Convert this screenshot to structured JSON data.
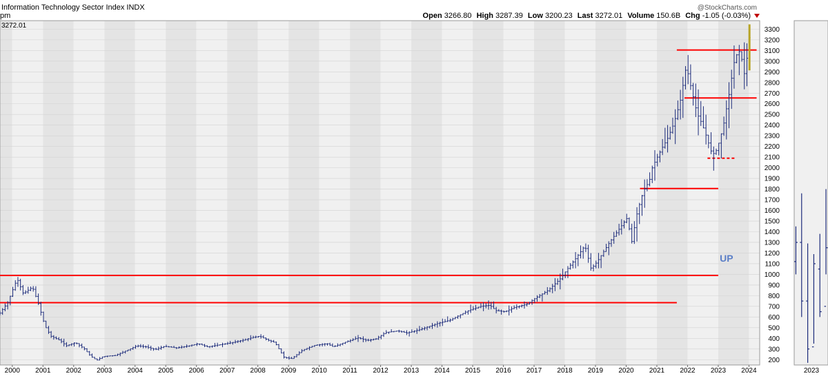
{
  "header": {
    "title": "Information Technology Sector Index",
    "exchange": "INDX",
    "subline": "pm",
    "last_price_label": "3272.01",
    "watermark": "@StockCharts.com",
    "quote": {
      "open_label": "Open",
      "open": "3266.80",
      "high_label": "High",
      "high": "3287.39",
      "low_label": "Low",
      "low": "3200.23",
      "last_label": "Last",
      "last": "3272.01",
      "volume_label": "Volume",
      "volume": "150.6B",
      "chg_label": "Chg",
      "chg": "-1.05 (-0.03%)"
    }
  },
  "colors": {
    "bar": "#1b2a7a",
    "support": "#ff0000",
    "band_a": "#f0f0f0",
    "band_b": "#e4e4e4",
    "last_bar": "#b7a427",
    "annotation": "#5b7fc7"
  },
  "chart_data": {
    "type": "ohlc",
    "interval": "monthly",
    "ylim": [
      150,
      3380
    ],
    "yticks": [
      200,
      300,
      400,
      500,
      600,
      700,
      800,
      900,
      1000,
      1100,
      1200,
      1300,
      1400,
      1500,
      1600,
      1700,
      1800,
      1900,
      2000,
      2100,
      2200,
      2300,
      2400,
      2500,
      2600,
      2700,
      2800,
      2900,
      3000,
      3100,
      3200,
      3300
    ],
    "x_labels": [
      "2000",
      "2001",
      "2002",
      "2003",
      "2004",
      "2005",
      "2006",
      "2007",
      "2008",
      "2009",
      "2010",
      "2011",
      "2012",
      "2013",
      "2014",
      "2015",
      "2016",
      "2017",
      "2018",
      "2019",
      "2020",
      "2021",
      "2022",
      "2023",
      "2024"
    ],
    "x_range": [
      1999.6,
      2024.35
    ],
    "annotation": "UP",
    "annotation_at": [
      2023.05,
      1120
    ],
    "price_anchors": [
      [
        1999.6,
        620
      ],
      [
        1999.9,
        740
      ],
      [
        2000.2,
        960
      ],
      [
        2000.4,
        820
      ],
      [
        2000.7,
        880
      ],
      [
        2000.9,
        720
      ],
      [
        2001.1,
        520
      ],
      [
        2001.3,
        420
      ],
      [
        2001.6,
        380
      ],
      [
        2001.8,
        330
      ],
      [
        2002.1,
        360
      ],
      [
        2002.4,
        300
      ],
      [
        2002.6,
        230
      ],
      [
        2002.8,
        195
      ],
      [
        2003.0,
        230
      ],
      [
        2003.4,
        240
      ],
      [
        2003.8,
        290
      ],
      [
        2004.1,
        330
      ],
      [
        2004.4,
        320
      ],
      [
        2004.7,
        295
      ],
      [
        2005.0,
        325
      ],
      [
        2005.4,
        310
      ],
      [
        2005.8,
        330
      ],
      [
        2006.1,
        350
      ],
      [
        2006.4,
        320
      ],
      [
        2006.8,
        340
      ],
      [
        2007.2,
        360
      ],
      [
        2007.6,
        385
      ],
      [
        2007.9,
        410
      ],
      [
        2008.1,
        420
      ],
      [
        2008.4,
        380
      ],
      [
        2008.6,
        360
      ],
      [
        2008.75,
        290
      ],
      [
        2008.9,
        220
      ],
      [
        2009.15,
        210
      ],
      [
        2009.5,
        290
      ],
      [
        2009.9,
        335
      ],
      [
        2010.3,
        350
      ],
      [
        2010.5,
        320
      ],
      [
        2010.9,
        365
      ],
      [
        2011.3,
        405
      ],
      [
        2011.6,
        380
      ],
      [
        2011.9,
        395
      ],
      [
        2012.2,
        455
      ],
      [
        2012.6,
        470
      ],
      [
        2012.9,
        450
      ],
      [
        2013.3,
        480
      ],
      [
        2013.9,
        540
      ],
      [
        2014.3,
        570
      ],
      [
        2014.9,
        660
      ],
      [
        2015.3,
        700
      ],
      [
        2015.6,
        710
      ],
      [
        2015.8,
        660
      ],
      [
        2016.1,
        650
      ],
      [
        2016.4,
        690
      ],
      [
        2016.8,
        720
      ],
      [
        2017.1,
        780
      ],
      [
        2017.5,
        850
      ],
      [
        2017.9,
        960
      ],
      [
        2018.1,
        1040
      ],
      [
        2018.4,
        1150
      ],
      [
        2018.7,
        1270
      ],
      [
        2018.9,
        1050
      ],
      [
        2019.1,
        1120
      ],
      [
        2019.5,
        1300
      ],
      [
        2019.9,
        1460
      ],
      [
        2020.1,
        1540
      ],
      [
        2020.2,
        1270
      ],
      [
        2020.4,
        1580
      ],
      [
        2020.6,
        1780
      ],
      [
        2020.8,
        1880
      ],
      [
        2020.9,
        2010
      ],
      [
        2021.2,
        2180
      ],
      [
        2021.4,
        2280
      ],
      [
        2021.6,
        2420
      ],
      [
        2021.8,
        2620
      ],
      [
        2021.95,
        2870
      ],
      [
        2022.0,
        2960
      ],
      [
        2022.15,
        2760
      ],
      [
        2022.35,
        2510
      ],
      [
        2022.5,
        2420
      ],
      [
        2022.65,
        2300
      ],
      [
        2022.85,
        2120
      ],
      [
        2023.0,
        2170
      ],
      [
        2023.2,
        2380
      ],
      [
        2023.4,
        2700
      ],
      [
        2023.55,
        2980
      ],
      [
        2023.7,
        3110
      ],
      [
        2023.8,
        3030
      ],
      [
        2023.9,
        2870
      ],
      [
        2024.0,
        3080
      ],
      [
        2024.08,
        3272
      ]
    ],
    "support_lines": [
      {
        "value": 990,
        "x_from": 1999.6,
        "x_to": 2023.0,
        "style": "solid"
      },
      {
        "value": 735,
        "x_from": 1999.6,
        "x_to": 2021.65,
        "style": "solid"
      },
      {
        "value": 1805,
        "x_from": 2020.45,
        "x_to": 2023.0,
        "style": "solid"
      },
      {
        "value": 2655,
        "x_from": 2021.9,
        "x_to": 2024.25,
        "style": "solid"
      },
      {
        "value": 3105,
        "x_from": 2021.65,
        "x_to": 2024.25,
        "style": "solid"
      },
      {
        "value": 2090,
        "x_from": 2022.65,
        "x_to": 2023.55,
        "style": "dashed"
      }
    ],
    "inset_chart": {
      "x_label": "2023",
      "ohlc_bars": [
        {
          "x": 0.05,
          "high": 1450,
          "low": 1000,
          "open": 1120,
          "close": 1300
        },
        {
          "x": 0.22,
          "high": 1760,
          "low": 600,
          "open": 1300,
          "close": 750
        },
        {
          "x": 0.4,
          "high": 1290,
          "low": 170,
          "open": 750,
          "close": 300
        },
        {
          "x": 0.58,
          "high": 1190,
          "low": 350,
          "open": 320,
          "close": 1100
        },
        {
          "x": 0.76,
          "high": 1380,
          "low": 600,
          "open": 1050,
          "close": 650
        },
        {
          "x": 0.94,
          "high": 1800,
          "low": 1000,
          "open": 700,
          "close": 1250
        }
      ]
    }
  }
}
